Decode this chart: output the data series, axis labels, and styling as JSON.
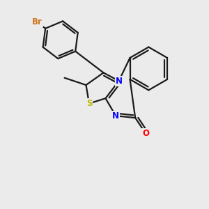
{
  "background_color": "#ebebeb",
  "bond_color": "#1a1a1a",
  "bond_width": 1.6,
  "atom_labels": {
    "Br": {
      "color": "#cc7722",
      "fontsize": 8.5
    },
    "N": {
      "color": "#0000ff",
      "fontsize": 8.5
    },
    "S": {
      "color": "#b8b800",
      "fontsize": 8.5
    },
    "O": {
      "color": "#ff0000",
      "fontsize": 8.5
    }
  },
  "figure_size": [
    3.0,
    3.0
  ],
  "dpi": 100
}
